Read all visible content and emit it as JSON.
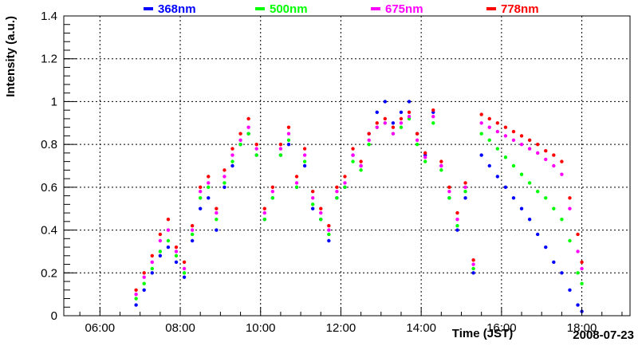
{
  "chart_data": {
    "type": "scatter",
    "title": "",
    "xlabel": "Time (JST)",
    "ylabel": "Intensity (a.u.)",
    "date_label": "2008-07-23",
    "x_unit": "hours (JST)",
    "xlim": [
      5.1,
      19.2
    ],
    "ylim": [
      0,
      1.4
    ],
    "x_ticks": [
      {
        "value": 6,
        "label": "06:00"
      },
      {
        "value": 8,
        "label": "08:00"
      },
      {
        "value": 10,
        "label": "10:00"
      },
      {
        "value": 12,
        "label": "12:00"
      },
      {
        "value": 14,
        "label": "14:00"
      },
      {
        "value": 16,
        "label": "16:00"
      },
      {
        "value": 18,
        "label": "18:00"
      }
    ],
    "y_ticks": [
      {
        "value": 0,
        "label": "0"
      },
      {
        "value": 0.2,
        "label": "0.2"
      },
      {
        "value": 0.4,
        "label": "0.4"
      },
      {
        "value": 0.6,
        "label": "0.6"
      },
      {
        "value": 0.8,
        "label": "0.8"
      },
      {
        "value": 1,
        "label": "1"
      },
      {
        "value": 1.2,
        "label": "1.2"
      },
      {
        "value": 1.4,
        "label": "1.4"
      }
    ],
    "grid": true,
    "legend_position": "top",
    "series": [
      {
        "name": "368nm",
        "color": "#0000ff",
        "x": [
          6.9,
          7.1,
          7.3,
          7.5,
          7.7,
          7.9,
          8.1,
          8.3,
          8.5,
          8.7,
          8.9,
          9.1,
          9.3,
          9.5,
          9.7,
          9.9,
          10.1,
          10.3,
          10.5,
          10.7,
          10.9,
          11.1,
          11.3,
          11.5,
          11.7,
          11.9,
          12.1,
          12.3,
          12.5,
          12.7,
          12.9,
          13.1,
          13.3,
          13.5,
          13.7,
          13.9,
          14.1,
          14.3,
          14.5,
          14.7,
          14.9,
          15.1,
          15.3,
          15.5,
          15.7,
          15.9,
          16.1,
          16.3,
          16.5,
          16.7,
          16.9,
          17.1,
          17.3,
          17.5,
          17.7,
          17.9,
          18.0
        ],
        "y": [
          0.05,
          0.12,
          0.2,
          0.28,
          0.32,
          0.25,
          0.18,
          0.35,
          0.5,
          0.55,
          0.4,
          0.6,
          0.7,
          0.8,
          0.85,
          0.75,
          0.45,
          0.55,
          0.75,
          0.8,
          0.6,
          0.7,
          0.5,
          0.45,
          0.35,
          0.55,
          0.6,
          0.75,
          0.7,
          0.85,
          0.95,
          1.0,
          0.9,
          0.95,
          1.0,
          0.85,
          0.75,
          0.95,
          0.7,
          0.55,
          0.4,
          0.55,
          0.2,
          0.75,
          0.7,
          0.65,
          0.6,
          0.55,
          0.5,
          0.45,
          0.38,
          0.32,
          0.25,
          0.2,
          0.12,
          0.05,
          0.02
        ]
      },
      {
        "name": "500nm",
        "color": "#00ff00",
        "x": [
          6.9,
          7.1,
          7.3,
          7.5,
          7.7,
          7.9,
          8.1,
          8.3,
          8.5,
          8.7,
          8.9,
          9.1,
          9.3,
          9.5,
          9.7,
          9.9,
          10.1,
          10.3,
          10.5,
          10.7,
          10.9,
          11.1,
          11.3,
          11.5,
          11.7,
          11.9,
          12.1,
          12.3,
          12.5,
          12.7,
          12.9,
          13.1,
          13.3,
          13.5,
          13.7,
          13.9,
          14.1,
          14.3,
          14.5,
          14.7,
          14.9,
          15.1,
          15.3,
          15.5,
          15.7,
          15.9,
          16.1,
          16.3,
          16.5,
          16.7,
          16.9,
          17.1,
          17.3,
          17.5,
          17.7,
          17.9,
          18.0
        ],
        "y": [
          0.08,
          0.15,
          0.22,
          0.3,
          0.35,
          0.28,
          0.2,
          0.38,
          0.55,
          0.6,
          0.45,
          0.62,
          0.72,
          0.8,
          0.85,
          0.75,
          0.45,
          0.55,
          0.75,
          0.82,
          0.6,
          0.72,
          0.52,
          0.45,
          0.38,
          0.55,
          0.6,
          0.72,
          0.68,
          0.8,
          0.88,
          0.9,
          0.85,
          0.88,
          0.92,
          0.8,
          0.72,
          0.9,
          0.68,
          0.55,
          0.42,
          0.58,
          0.22,
          0.85,
          0.82,
          0.78,
          0.74,
          0.7,
          0.66,
          0.62,
          0.58,
          0.55,
          0.5,
          0.45,
          0.35,
          0.2,
          0.15
        ]
      },
      {
        "name": "675nm",
        "color": "#ff00ff",
        "x": [
          6.9,
          7.1,
          7.3,
          7.5,
          7.7,
          7.9,
          8.1,
          8.3,
          8.5,
          8.7,
          8.9,
          9.1,
          9.3,
          9.5,
          9.7,
          9.9,
          10.1,
          10.3,
          10.5,
          10.7,
          10.9,
          11.1,
          11.3,
          11.5,
          11.7,
          11.9,
          12.1,
          12.3,
          12.5,
          12.7,
          12.9,
          13.1,
          13.3,
          13.5,
          13.7,
          13.9,
          14.1,
          14.3,
          14.5,
          14.7,
          14.9,
          15.1,
          15.3,
          15.5,
          15.7,
          15.9,
          16.1,
          16.3,
          16.5,
          16.7,
          16.9,
          17.1,
          17.3,
          17.5,
          17.7,
          17.9,
          18.0
        ],
        "y": [
          0.1,
          0.18,
          0.25,
          0.35,
          0.4,
          0.3,
          0.22,
          0.4,
          0.58,
          0.62,
          0.48,
          0.65,
          0.75,
          0.82,
          0.88,
          0.78,
          0.48,
          0.58,
          0.78,
          0.85,
          0.62,
          0.75,
          0.55,
          0.48,
          0.4,
          0.58,
          0.62,
          0.75,
          0.7,
          0.82,
          0.88,
          0.9,
          0.85,
          0.9,
          0.93,
          0.82,
          0.74,
          0.93,
          0.7,
          0.58,
          0.45,
          0.6,
          0.24,
          0.9,
          0.88,
          0.86,
          0.84,
          0.82,
          0.8,
          0.78,
          0.76,
          0.73,
          0.7,
          0.66,
          0.5,
          0.3,
          0.22
        ]
      },
      {
        "name": "778nm",
        "color": "#ff0000",
        "x": [
          6.9,
          7.1,
          7.3,
          7.5,
          7.7,
          7.9,
          8.1,
          8.3,
          8.5,
          8.7,
          8.9,
          9.1,
          9.3,
          9.5,
          9.7,
          9.9,
          10.1,
          10.3,
          10.5,
          10.7,
          10.9,
          11.1,
          11.3,
          11.5,
          11.7,
          11.9,
          12.1,
          12.3,
          12.5,
          12.7,
          12.9,
          13.1,
          13.3,
          13.5,
          13.7,
          13.9,
          14.1,
          14.3,
          14.5,
          14.7,
          14.9,
          15.1,
          15.3,
          15.5,
          15.7,
          15.9,
          16.1,
          16.3,
          16.5,
          16.7,
          16.9,
          17.1,
          17.3,
          17.5,
          17.7,
          17.9,
          18.0
        ],
        "y": [
          0.12,
          0.2,
          0.28,
          0.38,
          0.45,
          0.32,
          0.25,
          0.42,
          0.6,
          0.65,
          0.5,
          0.68,
          0.78,
          0.85,
          0.92,
          0.8,
          0.5,
          0.6,
          0.8,
          0.88,
          0.65,
          0.78,
          0.58,
          0.5,
          0.42,
          0.6,
          0.65,
          0.78,
          0.72,
          0.85,
          0.9,
          0.92,
          0.88,
          0.92,
          0.95,
          0.85,
          0.76,
          0.96,
          0.72,
          0.6,
          0.48,
          0.62,
          0.26,
          0.94,
          0.92,
          0.9,
          0.88,
          0.86,
          0.84,
          0.82,
          0.8,
          0.77,
          0.75,
          0.72,
          0.55,
          0.38,
          0.25
        ]
      }
    ]
  }
}
